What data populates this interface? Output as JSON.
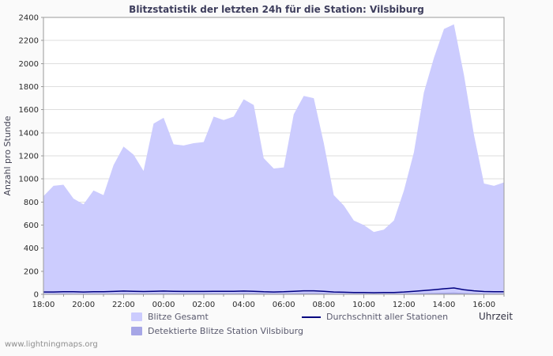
{
  "footer": {
    "watermark": "www.lightningmaps.org"
  },
  "chart_data": {
    "type": "area",
    "title": "Blitzstatistik der letzten 24h für die Station: Vilsbiburg",
    "ylabel": "Anzahl pro Stunde",
    "xlabel": "Uhrzeit",
    "ylim": [
      0,
      2400
    ],
    "ytick_step": 200,
    "grid": "horizontal",
    "legend_position": "bottom",
    "x_tick_labels": [
      "18:00",
      "20:00",
      "22:00",
      "00:00",
      "02:00",
      "04:00",
      "06:00",
      "08:00",
      "10:00",
      "12:00",
      "14:00",
      "16:00"
    ],
    "x_tick_interval_hours": 2,
    "x_start_label": "18:00",
    "x_step_hours": 0.5,
    "hours_total": 23,
    "series": [
      {
        "name": "Blitze Gesamt",
        "type": "area",
        "color": "#ccccfe",
        "values": [
          850,
          940,
          950,
          830,
          780,
          900,
          860,
          1120,
          1280,
          1210,
          1070,
          1480,
          1530,
          1300,
          1290,
          1310,
          1320,
          1540,
          1510,
          1540,
          1690,
          1640,
          1180,
          1090,
          1100,
          1560,
          1720,
          1700,
          1310,
          860,
          770,
          640,
          600,
          540,
          560,
          640,
          900,
          1230,
          1750,
          2050,
          2300,
          2340,
          1900,
          1380,
          960,
          940,
          970
        ]
      },
      {
        "name": "Detektierte Blitze Station Vilsbiburg",
        "type": "area",
        "color": "#a6a6e6",
        "values": [
          5,
          6,
          6,
          5,
          5,
          6,
          5,
          7,
          8,
          8,
          7,
          9,
          9,
          8,
          8,
          8,
          8,
          9,
          9,
          9,
          10,
          10,
          8,
          7,
          7,
          9,
          10,
          10,
          8,
          6,
          5,
          4,
          4,
          3,
          4,
          4,
          6,
          8,
          10,
          12,
          14,
          15,
          12,
          9,
          7,
          6,
          6
        ]
      },
      {
        "name": "Durchschnitt aller Stationen",
        "type": "line",
        "color": "#000080",
        "values": [
          20,
          20,
          22,
          22,
          20,
          22,
          22,
          25,
          28,
          26,
          24,
          26,
          28,
          26,
          25,
          25,
          25,
          26,
          26,
          26,
          28,
          26,
          22,
          20,
          22,
          26,
          30,
          30,
          26,
          20,
          18,
          16,
          15,
          14,
          15,
          16,
          20,
          26,
          32,
          40,
          48,
          55,
          40,
          30,
          24,
          22,
          22
        ]
      }
    ]
  }
}
